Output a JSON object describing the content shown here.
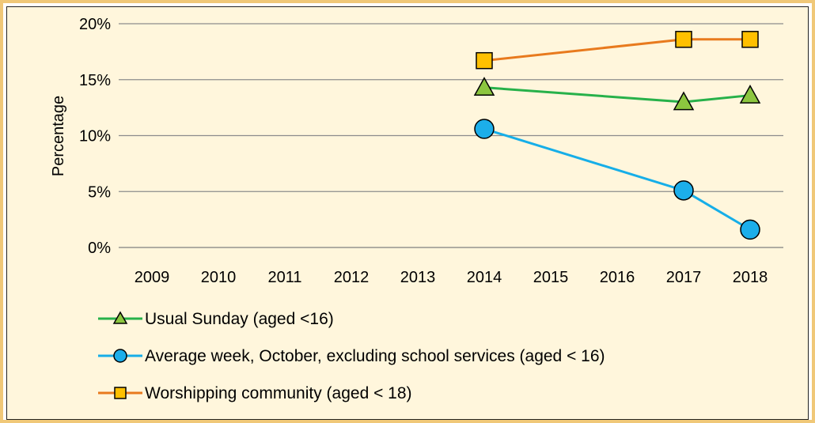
{
  "chart_data": {
    "type": "line",
    "title": "",
    "ylabel": "Percentage",
    "xlabel": "",
    "categories": [
      "2009",
      "2010",
      "2011",
      "2012",
      "2013",
      "2014",
      "2015",
      "2016",
      "2017",
      "2018"
    ],
    "ylim": [
      0,
      20
    ],
    "yticks": [
      0,
      5,
      10,
      15,
      20
    ],
    "ytick_labels": [
      "0%",
      "5%",
      "10%",
      "15%",
      "20%"
    ],
    "grid": "horizontal",
    "legend_position": "bottom",
    "series": [
      {
        "name": "Usual Sunday (aged <16)",
        "color": "#27b14a",
        "marker": "triangle",
        "marker_color": "#8cc63f",
        "points": [
          [
            "2014",
            14.3
          ],
          [
            "2017",
            13.0
          ],
          [
            "2018",
            13.6
          ]
        ]
      },
      {
        "name": "Average week, October, excluding school services (aged < 16)",
        "color": "#16aee8",
        "marker": "circle",
        "marker_color": "#1caeea",
        "points": [
          [
            "2014",
            10.6
          ],
          [
            "2017",
            5.1
          ],
          [
            "2018",
            1.6
          ]
        ]
      },
      {
        "name": "Worshipping community (aged < 18)",
        "color": "#e87a1e",
        "marker": "square",
        "marker_color": "#ffc000",
        "points": [
          [
            "2014",
            16.7
          ],
          [
            "2017",
            18.6
          ],
          [
            "2018",
            18.6
          ]
        ]
      }
    ]
  }
}
